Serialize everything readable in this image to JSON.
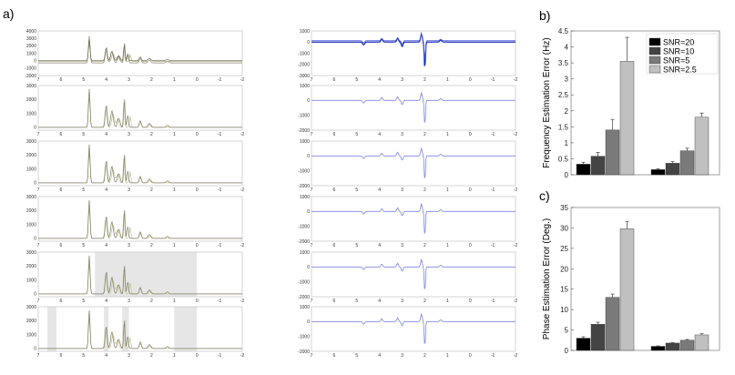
{
  "panel_labels": {
    "a": "a)",
    "b": "b)",
    "c": "c)"
  },
  "chart_data": [
    {
      "type": "line",
      "name": "left-spectra",
      "x_ticks": [
        7,
        6,
        5,
        4,
        3,
        2,
        1,
        0,
        -1,
        -2
      ],
      "panels": [
        {
          "y_ticks": [
            4000,
            3000,
            2000,
            1000,
            0,
            -1000,
            -2000
          ],
          "ylim": [
            -2000,
            4000
          ],
          "shaded": []
        },
        {
          "y_ticks": [
            3000,
            2000,
            1000,
            0
          ],
          "ylim": [
            -200,
            3000
          ],
          "shaded": []
        },
        {
          "y_ticks": [
            3000,
            2000,
            1000,
            0
          ],
          "ylim": [
            -200,
            3000
          ],
          "shaded": []
        },
        {
          "y_ticks": [
            3000,
            2000,
            1000,
            0
          ],
          "ylim": [
            -200,
            3000
          ],
          "shaded": []
        },
        {
          "y_ticks": [
            3000,
            2000,
            1000,
            0
          ],
          "ylim": [
            -200,
            3000
          ],
          "shaded": [
            [
              4.5,
              0
            ]
          ]
        },
        {
          "y_ticks": [
            3000,
            2000,
            1000,
            0
          ],
          "ylim": [
            -200,
            3000
          ],
          "shaded": [
            [
              6.6,
              6.2
            ],
            [
              4.1,
              3.9
            ],
            [
              3.3,
              3.0
            ],
            [
              1.0,
              0
            ]
          ]
        }
      ]
    },
    {
      "type": "line",
      "name": "right-difference-spectra",
      "x_ticks": [
        7,
        6,
        5,
        4,
        3,
        2,
        1,
        0,
        -1,
        -2
      ],
      "panels": [
        {
          "y_ticks": [
            1000,
            0,
            -1000,
            -2000,
            -3000
          ],
          "ylim": [
            -3000,
            1000
          ]
        },
        {
          "y_ticks": [
            1000,
            0,
            -1000,
            -2000
          ],
          "ylim": [
            -2000,
            1000
          ]
        },
        {
          "y_ticks": [
            1000,
            0,
            -1000,
            -2000
          ],
          "ylim": [
            -2000,
            1000
          ]
        },
        {
          "y_ticks": [
            1000,
            0,
            -1000,
            -2000
          ],
          "ylim": [
            -2000,
            1000
          ]
        },
        {
          "y_ticks": [
            1000,
            0,
            -1000,
            -2000
          ],
          "ylim": [
            -2000,
            1000
          ]
        },
        {
          "y_ticks": [
            1000,
            0,
            -1000,
            -2000
          ],
          "ylim": [
            -2000,
            1000
          ]
        }
      ]
    },
    {
      "type": "bar",
      "name": "frequency-error",
      "ylabel": "Frequency Estimation Error (Hz)",
      "ylim": [
        0,
        4.5
      ],
      "y_ticks": [
        0,
        0.5,
        1,
        1.5,
        2,
        2.5,
        3,
        3.5,
        4,
        4.5
      ],
      "groups": 2,
      "series": [
        {
          "name": "SNR=20",
          "color": "#000000",
          "values": [
            0.33,
            0.16
          ],
          "err": [
            0.06,
            0.03
          ]
        },
        {
          "name": "SNR=10",
          "color": "#444444",
          "values": [
            0.58,
            0.36
          ],
          "err": [
            0.12,
            0.05
          ]
        },
        {
          "name": "SNR=5",
          "color": "#7a7a7a",
          "values": [
            1.4,
            0.75
          ],
          "err": [
            0.33,
            0.08
          ]
        },
        {
          "name": "SNR=2.5",
          "color": "#c0c0c0",
          "values": [
            3.55,
            1.8
          ],
          "err": [
            0.75,
            0.13
          ]
        }
      ],
      "legend": "top-right"
    },
    {
      "type": "bar",
      "name": "phase-error",
      "ylabel": "Phase Estimation Error (Deg.)",
      "ylim": [
        0,
        35
      ],
      "y_ticks": [
        0,
        5,
        10,
        15,
        20,
        25,
        30,
        35
      ],
      "groups": 2,
      "series": [
        {
          "name": "SNR=20",
          "color": "#000000",
          "values": [
            3.0,
            1.0
          ],
          "err": [
            0.35,
            0.1
          ]
        },
        {
          "name": "SNR=10",
          "color": "#444444",
          "values": [
            6.4,
            1.8
          ],
          "err": [
            0.5,
            0.15
          ]
        },
        {
          "name": "SNR=5",
          "color": "#7a7a7a",
          "values": [
            13.0,
            2.5
          ],
          "err": [
            0.8,
            0.2
          ]
        },
        {
          "name": "SNR=2.5",
          "color": "#c0c0c0",
          "values": [
            29.8,
            3.8
          ],
          "err": [
            1.8,
            0.3
          ]
        }
      ]
    }
  ]
}
